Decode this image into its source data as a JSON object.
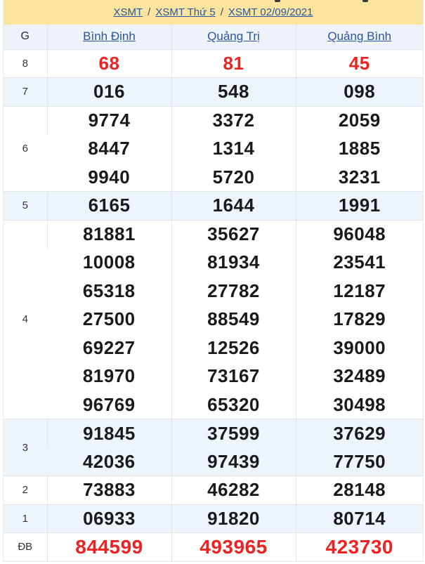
{
  "breadcrumb": {
    "separator": "/",
    "items": [
      {
        "label": "XSMT"
      },
      {
        "label": "XSMT Thứ 5"
      },
      {
        "label": "XSMT 02/09/2021"
      }
    ]
  },
  "table": {
    "g_header": "G",
    "columns": [
      "Bình Định",
      "Quảng Trị",
      "Quảng Bình"
    ],
    "rows": [
      {
        "g": "8",
        "red": true,
        "shaded": false,
        "lines": [
          [
            "68",
            "81",
            "45"
          ]
        ]
      },
      {
        "g": "7",
        "red": false,
        "shaded": true,
        "lines": [
          [
            "016",
            "548",
            "098"
          ]
        ]
      },
      {
        "g": "6",
        "red": false,
        "shaded": false,
        "lines": [
          [
            "9774",
            "3372",
            "2059"
          ],
          [
            "8447",
            "1314",
            "1885"
          ],
          [
            "9940",
            "5720",
            "3231"
          ]
        ]
      },
      {
        "g": "5",
        "red": false,
        "shaded": true,
        "lines": [
          [
            "6165",
            "1644",
            "1991"
          ]
        ]
      },
      {
        "g": "4",
        "red": false,
        "shaded": false,
        "lines": [
          [
            "81881",
            "35627",
            "96048"
          ],
          [
            "10008",
            "81934",
            "23541"
          ],
          [
            "65318",
            "27782",
            "12187"
          ],
          [
            "27500",
            "88549",
            "17829"
          ],
          [
            "69227",
            "12526",
            "39000"
          ],
          [
            "81970",
            "73167",
            "32489"
          ],
          [
            "96769",
            "65320",
            "30498"
          ]
        ]
      },
      {
        "g": "3",
        "red": false,
        "shaded": true,
        "lines": [
          [
            "91845",
            "37599",
            "37629"
          ],
          [
            "42036",
            "97439",
            "77750"
          ]
        ]
      },
      {
        "g": "2",
        "red": false,
        "shaded": false,
        "lines": [
          [
            "73883",
            "46282",
            "28148"
          ]
        ]
      },
      {
        "g": "1",
        "red": false,
        "shaded": true,
        "lines": [
          [
            "06933",
            "91820",
            "80714"
          ]
        ]
      },
      {
        "g": "ĐB",
        "red": true,
        "shaded": false,
        "lines": [
          [
            "844599",
            "493965",
            "423730"
          ]
        ]
      }
    ]
  },
  "colors": {
    "banner_yellow": "#fae49e",
    "link_blue": "#2b55a5",
    "shaded_row_blue": "#eef4fc",
    "header_row_blue": "#edf3f9",
    "result_red": "#ef2222",
    "number_black": "#1a1a1a",
    "border_gray": "#e3e3e3"
  }
}
